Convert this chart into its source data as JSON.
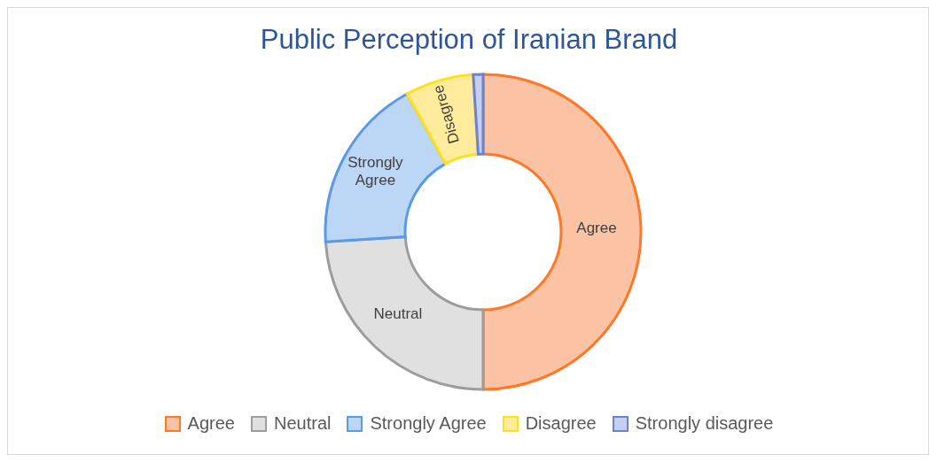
{
  "chart_data": {
    "type": "donut",
    "title": "Public Perception of Iranian Brand",
    "categories": [
      "Agree",
      "Neutral",
      "Strongly Agree",
      "Disagree",
      "Strongly disagree"
    ],
    "values": [
      50,
      24,
      18,
      7,
      1
    ],
    "colors": [
      "#fbc3a3",
      "#e0e0e0",
      "#bcd6f6",
      "#ffeb9c",
      "#c5cff0"
    ],
    "value_labels": [
      "Agree",
      "Neutral",
      "Strongly Agree",
      "Disagree",
      null
    ],
    "legend": "bottom"
  }
}
